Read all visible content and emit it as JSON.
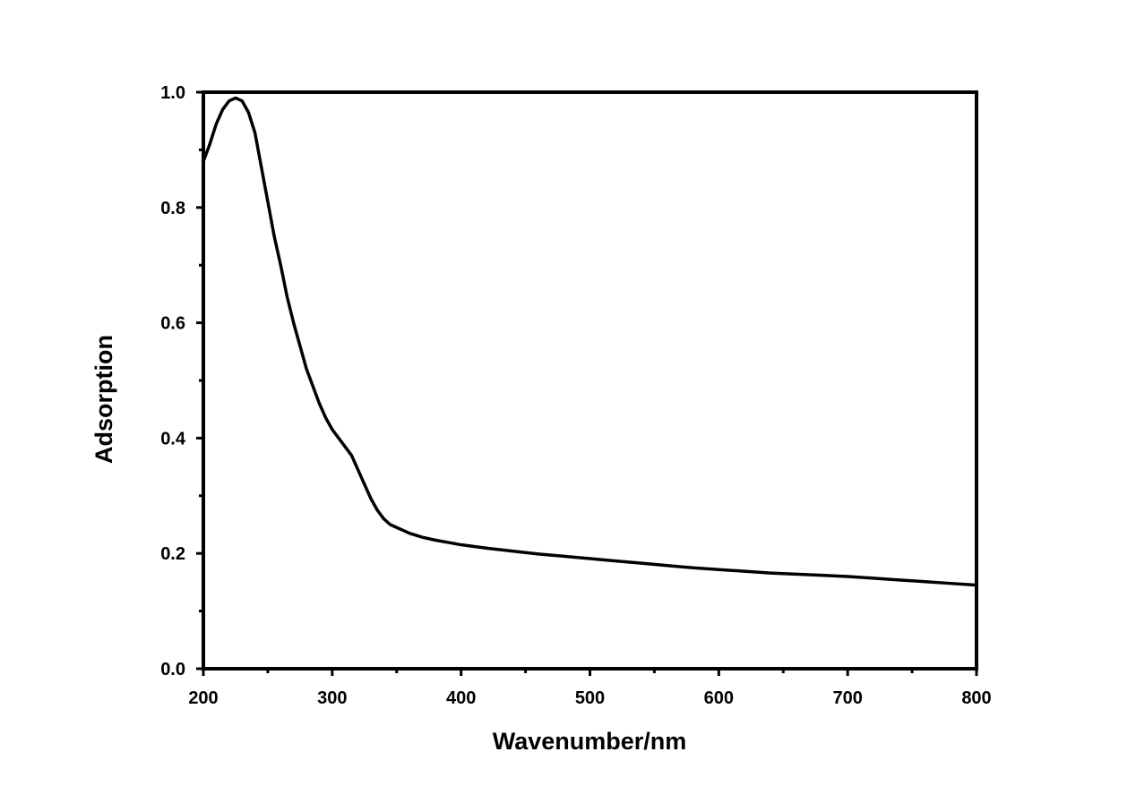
{
  "chart_data": {
    "type": "line",
    "title": "",
    "xlabel": "Wavenumber/nm",
    "ylabel": "Adsorption",
    "xlim": [
      200,
      800
    ],
    "ylim": [
      0.0,
      1.0
    ],
    "x_ticks": [
      200,
      300,
      400,
      500,
      600,
      700,
      800
    ],
    "x_tick_labels": [
      "200",
      "300",
      "400",
      "500",
      "600",
      "700",
      "800"
    ],
    "y_ticks": [
      0.0,
      0.2,
      0.4,
      0.6,
      0.8,
      1.0
    ],
    "y_tick_labels": [
      "0.0",
      "0.2",
      "0.4",
      "0.6",
      "0.8",
      "1.0"
    ],
    "x_minor_step": 50,
    "y_minor_step": 0.1,
    "grid": false,
    "legend": "none",
    "line_color": "#000000",
    "series": [
      {
        "x": [
          200,
          205,
          210,
          215,
          220,
          225,
          230,
          235,
          240,
          245,
          250,
          255,
          260,
          265,
          270,
          275,
          280,
          285,
          290,
          295,
          300,
          305,
          310,
          315,
          320,
          325,
          330,
          335,
          340,
          345,
          350,
          355,
          360,
          370,
          380,
          390,
          400,
          420,
          440,
          460,
          480,
          500,
          520,
          540,
          560,
          580,
          600,
          620,
          640,
          660,
          680,
          700,
          720,
          740,
          760,
          780,
          800
        ],
        "y": [
          0.88,
          0.91,
          0.945,
          0.97,
          0.985,
          0.99,
          0.985,
          0.965,
          0.93,
          0.87,
          0.81,
          0.75,
          0.7,
          0.645,
          0.6,
          0.56,
          0.52,
          0.49,
          0.46,
          0.435,
          0.415,
          0.4,
          0.385,
          0.37,
          0.345,
          0.32,
          0.295,
          0.275,
          0.26,
          0.25,
          0.245,
          0.24,
          0.235,
          0.228,
          0.223,
          0.219,
          0.215,
          0.209,
          0.204,
          0.199,
          0.195,
          0.191,
          0.187,
          0.183,
          0.179,
          0.175,
          0.172,
          0.169,
          0.166,
          0.164,
          0.162,
          0.16,
          0.157,
          0.154,
          0.151,
          0.148,
          0.145
        ]
      }
    ]
  }
}
